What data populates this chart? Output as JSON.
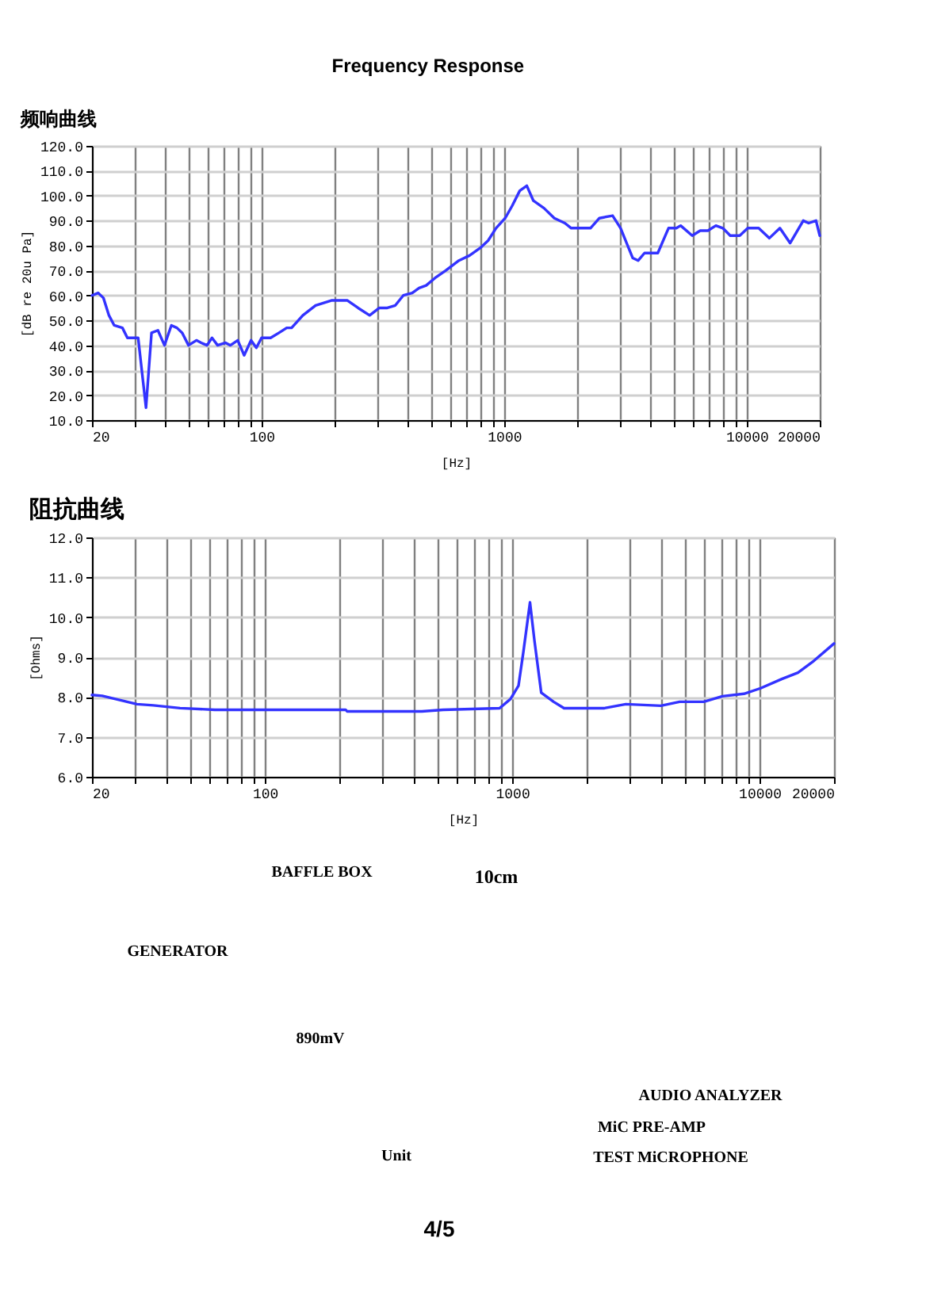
{
  "chart_data": [
    {
      "type": "line",
      "title": "Frequency Response",
      "subtitle": "频响曲线",
      "xlabel": "[Hz]",
      "ylabel": "[dB re 20u Pa]",
      "x": [
        20,
        21.2,
        22.3,
        23.5,
        24.7,
        26.7,
        28,
        31,
        33.4,
        35.2,
        37.4,
        39.8,
        42.5,
        44.8,
        47.1,
        50,
        53.9,
        56.4,
        59.6,
        62.5,
        65.9,
        71.1,
        74.4,
        79.8,
        84.8,
        90.5,
        95.2,
        100,
        109,
        118,
        127,
        133,
        148,
        167,
        194,
        226,
        250,
        279,
        306,
        330,
        356,
        384,
        418,
        446,
        477,
        519,
        574,
        651,
        720,
        796,
        859,
        926,
        1010,
        1080,
        1160,
        1240,
        1320,
        1460,
        1610,
        1780,
        1890,
        2070,
        2270,
        2470,
        2800,
        3020,
        3230,
        3390,
        3570,
        3790,
        4300,
        4760,
        5130,
        5340,
        5960,
        6430,
        6920,
        7460,
        7970,
        8550,
        9360,
        10100,
        11200,
        12400,
        13700,
        15100,
        17100,
        18000,
        19300,
        20000
      ],
      "series": [
        {
          "color": "#3333ff",
          "values": [
            60,
            61,
            59,
            52,
            48,
            47,
            43,
            43,
            15,
            45,
            46,
            40,
            48,
            47,
            45,
            40,
            42,
            41,
            40,
            43,
            40,
            41,
            40,
            42,
            36,
            42,
            39,
            43,
            43,
            45,
            47,
            47,
            52,
            56,
            58,
            58,
            55,
            52,
            55,
            55,
            56,
            60,
            61,
            63,
            64,
            67,
            70,
            74,
            76,
            79,
            82,
            87,
            91,
            96,
            102,
            104,
            98,
            95,
            91,
            89,
            87,
            87,
            87,
            91,
            92,
            87,
            80,
            75,
            74,
            77,
            77,
            87,
            87,
            88,
            84,
            86,
            86,
            88,
            87,
            84,
            84,
            87,
            87,
            83,
            87,
            81,
            90,
            89,
            90,
            84
          ]
        }
      ],
      "xlim": [
        20,
        20000
      ],
      "xticks": [
        20,
        {
          "value": 30,
          "label": null
        },
        {
          "value": 40,
          "label": null
        },
        {
          "value": 50,
          "label": null
        },
        {
          "value": 60,
          "label": null
        },
        {
          "value": 70,
          "label": null
        },
        {
          "value": 80,
          "label": null
        },
        {
          "value": 90,
          "label": null
        },
        100,
        {
          "value": 200,
          "label": null
        },
        {
          "value": 300,
          "label": null
        },
        {
          "value": 400,
          "label": null
        },
        {
          "value": 500,
          "label": null
        },
        {
          "value": 600,
          "label": null
        },
        {
          "value": 700,
          "label": null
        },
        {
          "value": 800,
          "label": null
        },
        {
          "value": 900,
          "label": null
        },
        1000,
        {
          "value": 2000,
          "label": null
        },
        {
          "value": 3000,
          "label": null
        },
        {
          "value": 4000,
          "label": null
        },
        {
          "value": 5000,
          "label": null
        },
        {
          "value": 6000,
          "label": null
        },
        {
          "value": 7000,
          "label": null
        },
        {
          "value": 8000,
          "label": null
        },
        {
          "value": 9000,
          "label": null
        },
        10000,
        20000
      ],
      "ylim": [
        10,
        120
      ],
      "yticks": [
        {
          "value": 10,
          "label": "10.0"
        },
        {
          "value": 20,
          "label": "20.0"
        },
        {
          "value": 30,
          "label": "30.0"
        },
        {
          "value": 40,
          "label": "40.0"
        },
        {
          "value": 50,
          "label": "50.0"
        },
        {
          "value": 60,
          "label": "60.0"
        },
        {
          "value": 70,
          "label": "70.0"
        },
        {
          "value": 80,
          "label": "80.0"
        },
        {
          "value": 90,
          "label": "90.0"
        },
        {
          "value": 100,
          "label": "100.0"
        },
        {
          "value": 110,
          "label": "110.0"
        },
        {
          "value": 120,
          "label": "120.0"
        }
      ],
      "log": "x",
      "grid": true,
      "line_style": "solid"
    },
    {
      "type": "line",
      "title": "阻抗曲线",
      "xlabel": "[Hz]",
      "ylabel": "[Ohms]",
      "x": [
        20,
        22,
        24.9,
        30.4,
        35.4,
        45.4,
        62.8,
        96,
        212,
        215,
        431,
        526,
        889,
        984,
        1060,
        1110,
        1180,
        1230,
        1310,
        1470,
        1620,
        2360,
        2880,
        3990,
        4750,
        5950,
        7080,
        8650,
        10100,
        12300,
        14300,
        16600,
        20000
      ],
      "series": [
        {
          "color": "#3333ff",
          "values": [
            8.05,
            8.03,
            7.95,
            7.82,
            7.79,
            7.72,
            7.68,
            7.68,
            7.68,
            7.64,
            7.64,
            7.68,
            7.72,
            7.95,
            8.28,
            9.14,
            10.37,
            9.41,
            8.11,
            7.88,
            7.72,
            7.72,
            7.82,
            7.78,
            7.88,
            7.88,
            8.02,
            8.08,
            8.22,
            8.45,
            8.61,
            8.91,
            9.34
          ]
        }
      ],
      "xlim": [
        20,
        20000
      ],
      "xticks": [
        20,
        {
          "value": 30,
          "label": null
        },
        {
          "value": 40,
          "label": null
        },
        {
          "value": 50,
          "label": null
        },
        {
          "value": 60,
          "label": null
        },
        {
          "value": 70,
          "label": null
        },
        {
          "value": 80,
          "label": null
        },
        {
          "value": 90,
          "label": null
        },
        100,
        {
          "value": 200,
          "label": null
        },
        {
          "value": 300,
          "label": null
        },
        {
          "value": 400,
          "label": null
        },
        {
          "value": 500,
          "label": null
        },
        {
          "value": 600,
          "label": null
        },
        {
          "value": 700,
          "label": null
        },
        {
          "value": 800,
          "label": null
        },
        {
          "value": 900,
          "label": null
        },
        1000,
        {
          "value": 2000,
          "label": null
        },
        {
          "value": 3000,
          "label": null
        },
        {
          "value": 4000,
          "label": null
        },
        {
          "value": 5000,
          "label": null
        },
        {
          "value": 6000,
          "label": null
        },
        {
          "value": 7000,
          "label": null
        },
        {
          "value": 8000,
          "label": null
        },
        {
          "value": 9000,
          "label": null
        },
        10000,
        20000
      ],
      "ylim": [
        6,
        12
      ],
      "yticks": [
        {
          "value": 6,
          "label": "6.0"
        },
        {
          "value": 7,
          "label": "7.0"
        },
        {
          "value": 8,
          "label": "8.0"
        },
        {
          "value": 9,
          "label": "9.0"
        },
        {
          "value": 10,
          "label": "10.0"
        },
        {
          "value": 11,
          "label": "11.0"
        },
        {
          "value": 12,
          "label": "12.0"
        }
      ],
      "log": "x",
      "grid": true,
      "line_style": "solid"
    },
    {
      "type": "other",
      "annotations": [
        "BAFFLE BOX",
        "10cm",
        "GENERATOR",
        "890mV",
        "AUDIO ANALYZER",
        "MiC PRE-AMP",
        "TEST MiCROPHONE",
        "Unit",
        "4/5"
      ]
    }
  ]
}
